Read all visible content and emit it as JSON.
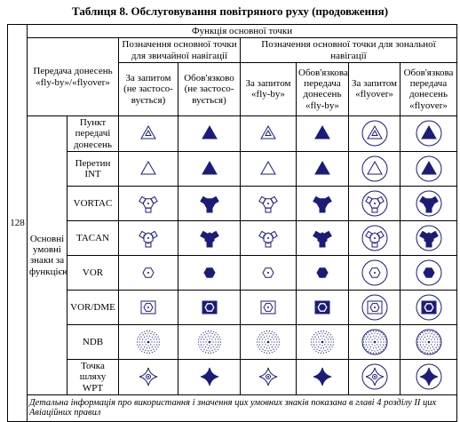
{
  "title": "Таблиця 8. Обслуговування повітряного руху (продовження)",
  "table": {
    "row_number": "128",
    "header": {
      "function": "Функція основної точки",
      "group1": "Позначення основної точки для звичайної навігації",
      "group2": "Позначення основної точки для зональної навігації",
      "transfer": "Передача донесень «fly-by»/«flyover»",
      "columns": [
        "За запитом (не застосо-вується)",
        "Обов'язково (не застосо-вується)",
        "За запитом «fly-by»",
        "Обов'язкова передача донесень «fly-by»",
        "За запитом «flyover»",
        "Обов'язкова передача донесень «flyover»"
      ]
    },
    "group_label": "Основні умовні знаки за функцією",
    "rows": [
      "Пункт передачі донесень",
      "Перетин INT",
      "VORTAC",
      "TACAN",
      "VOR",
      "VOR/DME",
      "NDB",
      "Точка шляху WPT"
    ],
    "note": "Детальна інформація про використання і значення цих умовних знаків показана в главі 4 розділу II цих Авіаційних правил"
  }
}
